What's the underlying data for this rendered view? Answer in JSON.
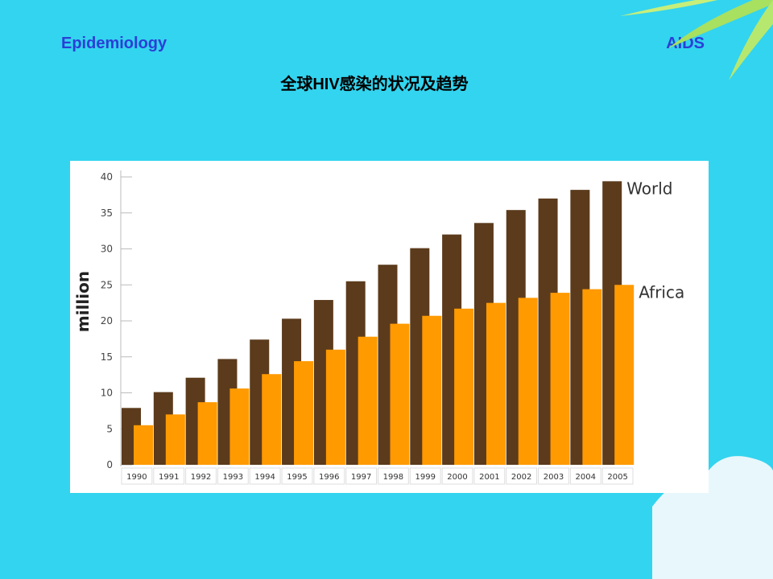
{
  "header": {
    "left": "Epidemiology",
    "right": "AIDS",
    "title": "全球HIV感染的状况及趋势"
  },
  "chart_data": {
    "type": "bar",
    "y_label": "million",
    "categories": [
      "1990",
      "1991",
      "1992",
      "1993",
      "1994",
      "1995",
      "1996",
      "1997",
      "1998",
      "1999",
      "2000",
      "2001",
      "2002",
      "2003",
      "2004",
      "2005"
    ],
    "series": [
      {
        "name": "World",
        "color": "#5b3b1c",
        "values": [
          7.9,
          10.1,
          12.1,
          14.7,
          17.4,
          20.3,
          22.9,
          25.5,
          27.8,
          30.1,
          32.0,
          33.6,
          35.4,
          37.0,
          38.2,
          39.4
        ]
      },
      {
        "name": "Africa",
        "color": "#ff9a00",
        "values": [
          5.5,
          7.0,
          8.7,
          10.6,
          12.6,
          14.4,
          16.0,
          17.8,
          19.6,
          20.7,
          21.7,
          22.5,
          23.2,
          23.9,
          24.4,
          25.0
        ]
      }
    ],
    "ylim": [
      0,
      40
    ],
    "yticks": [
      0,
      5,
      10,
      15,
      20,
      25,
      30,
      35,
      40
    ]
  }
}
